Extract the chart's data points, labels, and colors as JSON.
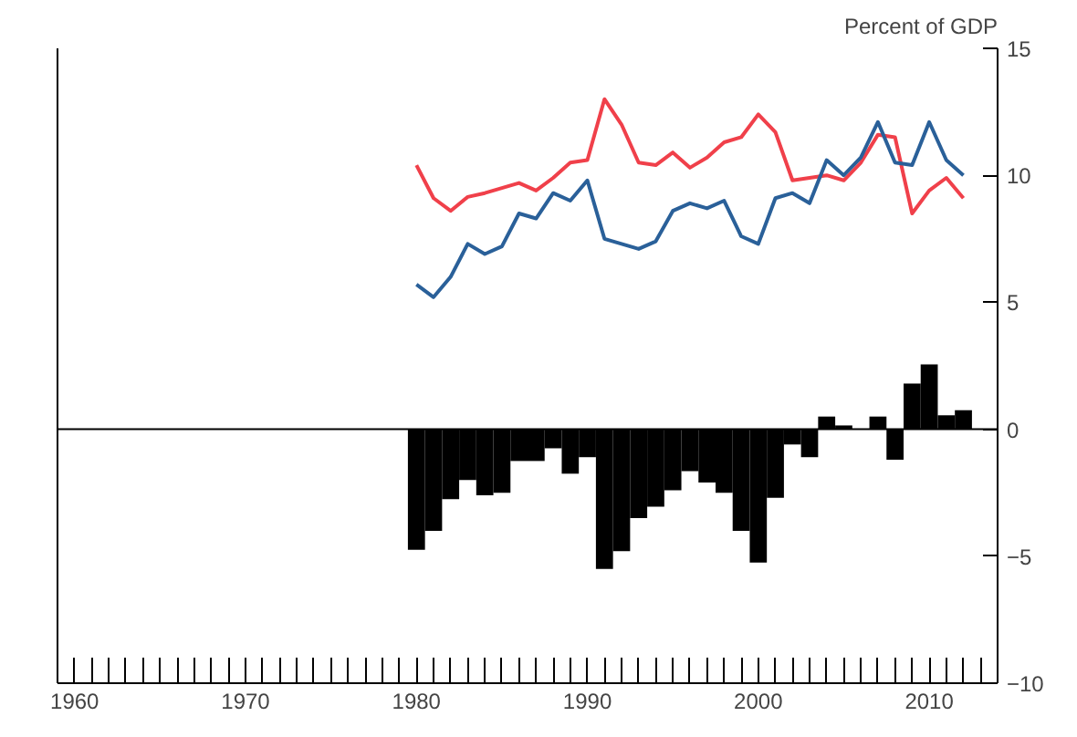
{
  "chart_data": {
    "type": "line",
    "ylabel": "Percent of GDP",
    "x": [
      1980,
      1981,
      1982,
      1983,
      1984,
      1985,
      1986,
      1987,
      1988,
      1989,
      1990,
      1991,
      1992,
      1993,
      1994,
      1995,
      1996,
      1997,
      1998,
      1999,
      2000,
      2001,
      2002,
      2003,
      2004,
      2005,
      2006,
      2007,
      2008,
      2009,
      2010,
      2011,
      2012
    ],
    "series": [
      {
        "color": "#f0404a",
        "values": [
          10.4,
          9.1,
          8.6,
          9.15,
          9.3,
          9.5,
          9.7,
          9.4,
          9.9,
          10.5,
          10.6,
          13.0,
          12.0,
          10.5,
          10.4,
          10.9,
          10.3,
          10.7,
          11.3,
          11.5,
          12.4,
          11.7,
          9.8,
          9.9,
          10.0,
          9.8,
          10.5,
          11.6,
          11.5,
          8.5,
          9.4,
          9.9,
          9.1
        ]
      },
      {
        "color": "#2a6099",
        "values": [
          5.7,
          5.2,
          6.0,
          7.3,
          6.9,
          7.2,
          8.5,
          8.3,
          9.3,
          9.0,
          9.8,
          7.5,
          7.3,
          7.1,
          7.4,
          8.6,
          8.9,
          8.7,
          9.0,
          7.6,
          7.3,
          9.1,
          9.3,
          8.9,
          10.6,
          10.0,
          10.7,
          12.1,
          10.5,
          10.4,
          12.1,
          10.6,
          10.0
        ]
      },
      {
        "type": "bar",
        "color": "#000000",
        "values": [
          -4.75,
          -4.0,
          -2.75,
          -2.0,
          -2.6,
          -2.5,
          -1.25,
          -1.25,
          -0.75,
          -1.75,
          -1.1,
          -5.5,
          -4.8,
          -3.5,
          -3.05,
          -2.4,
          -1.65,
          -2.1,
          -2.5,
          -4.0,
          -5.25,
          -2.7,
          -0.6,
          -1.1,
          0.5,
          0.15,
          null,
          0.5,
          -1.2,
          1.8,
          2.55,
          0.55,
          0.75
        ]
      }
    ],
    "xlim": [
      1959,
      2014
    ],
    "ylim": [
      -10,
      15
    ],
    "xticks": [
      1960,
      {
        "value": 1961,
        "label": null
      },
      {
        "value": 1962,
        "label": null
      },
      {
        "value": 1963,
        "label": null
      },
      {
        "value": 1964,
        "label": null
      },
      {
        "value": 1965,
        "label": null
      },
      {
        "value": 1966,
        "label": null
      },
      {
        "value": 1967,
        "label": null
      },
      {
        "value": 1968,
        "label": null
      },
      {
        "value": 1969,
        "label": null
      },
      1970,
      {
        "value": 1971,
        "label": null
      },
      {
        "value": 1972,
        "label": null
      },
      {
        "value": 1973,
        "label": null
      },
      {
        "value": 1974,
        "label": null
      },
      {
        "value": 1975,
        "label": null
      },
      {
        "value": 1976,
        "label": null
      },
      {
        "value": 1977,
        "label": null
      },
      {
        "value": 1978,
        "label": null
      },
      {
        "value": 1979,
        "label": null
      },
      1980,
      {
        "value": 1981,
        "label": null
      },
      {
        "value": 1982,
        "label": null
      },
      {
        "value": 1983,
        "label": null
      },
      {
        "value": 1984,
        "label": null
      },
      {
        "value": 1985,
        "label": null
      },
      {
        "value": 1986,
        "label": null
      },
      {
        "value": 1987,
        "label": null
      },
      {
        "value": 1988,
        "label": null
      },
      {
        "value": 1989,
        "label": null
      },
      1990,
      {
        "value": 1991,
        "label": null
      },
      {
        "value": 1992,
        "label": null
      },
      {
        "value": 1993,
        "label": null
      },
      {
        "value": 1994,
        "label": null
      },
      {
        "value": 1995,
        "label": null
      },
      {
        "value": 1996,
        "label": null
      },
      {
        "value": 1997,
        "label": null
      },
      {
        "value": 1998,
        "label": null
      },
      {
        "value": 1999,
        "label": null
      },
      2000,
      {
        "value": 2001,
        "label": null
      },
      {
        "value": 2002,
        "label": null
      },
      {
        "value": 2003,
        "label": null
      },
      {
        "value": 2004,
        "label": null
      },
      {
        "value": 2005,
        "label": null
      },
      {
        "value": 2006,
        "label": null
      },
      {
        "value": 2007,
        "label": null
      },
      {
        "value": 2008,
        "label": null
      },
      {
        "value": 2009,
        "label": null
      },
      2010,
      {
        "value": 2011,
        "label": null
      },
      {
        "value": 2012,
        "label": null
      },
      {
        "value": 2013,
        "label": null
      }
    ],
    "yticks": [
      -10,
      -5,
      0,
      5,
      10,
      15
    ],
    "ref_lines": [
      {
        "axis": "y",
        "value": 0,
        "color": "#000000"
      }
    ],
    "grid": false
  }
}
